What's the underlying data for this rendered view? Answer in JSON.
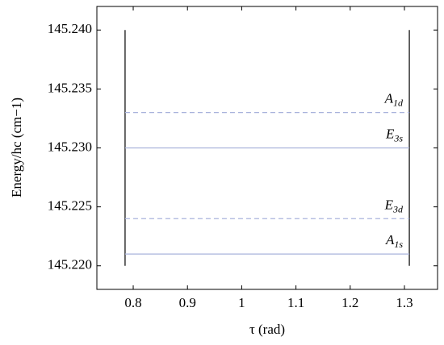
{
  "chart_data": {
    "type": "line",
    "xlabel": "τ (rad)",
    "ylabel": "Energy/hc (cm−1)",
    "xlim": [
      0.733,
      1.361
    ],
    "xticks": [
      0.8,
      0.9,
      1,
      1.1,
      1.2,
      1.3
    ],
    "ylim": [
      145.218,
      145.242
    ],
    "yticks": [
      {
        "value": 145.22,
        "label": "145.220"
      },
      145.225,
      {
        "value": 145.23,
        "label": "145.230"
      },
      145.235,
      {
        "value": 145.24,
        "label": "145.240"
      }
    ],
    "label_color": "#2a2ab0",
    "series": [
      {
        "color": "#000000",
        "dashed": false,
        "x": [
          0.785,
          0.785
        ],
        "values": [
          145.22,
          145.24
        ]
      },
      {
        "color": "#000000",
        "dashed": false,
        "x": [
          1.309,
          1.309
        ],
        "values": [
          145.22,
          145.24
        ]
      },
      {
        "name": "A1d",
        "color": "#a9b3dc",
        "dashed": true,
        "x": [
          0.785,
          1.309
        ],
        "values": [
          145.233,
          145.233
        ]
      },
      {
        "name": "E3s",
        "color": "#a9b3dc",
        "dashed": false,
        "x": [
          0.785,
          1.309
        ],
        "values": [
          145.23,
          145.23
        ]
      },
      {
        "name": "E3d",
        "color": "#a9b3dc",
        "dashed": true,
        "x": [
          0.785,
          1.309
        ],
        "values": [
          145.224,
          145.224
        ]
      },
      {
        "name": "A1s",
        "color": "#a9b3dc",
        "dashed": false,
        "x": [
          0.785,
          1.309
        ],
        "values": [
          145.221,
          145.221
        ]
      }
    ]
  }
}
